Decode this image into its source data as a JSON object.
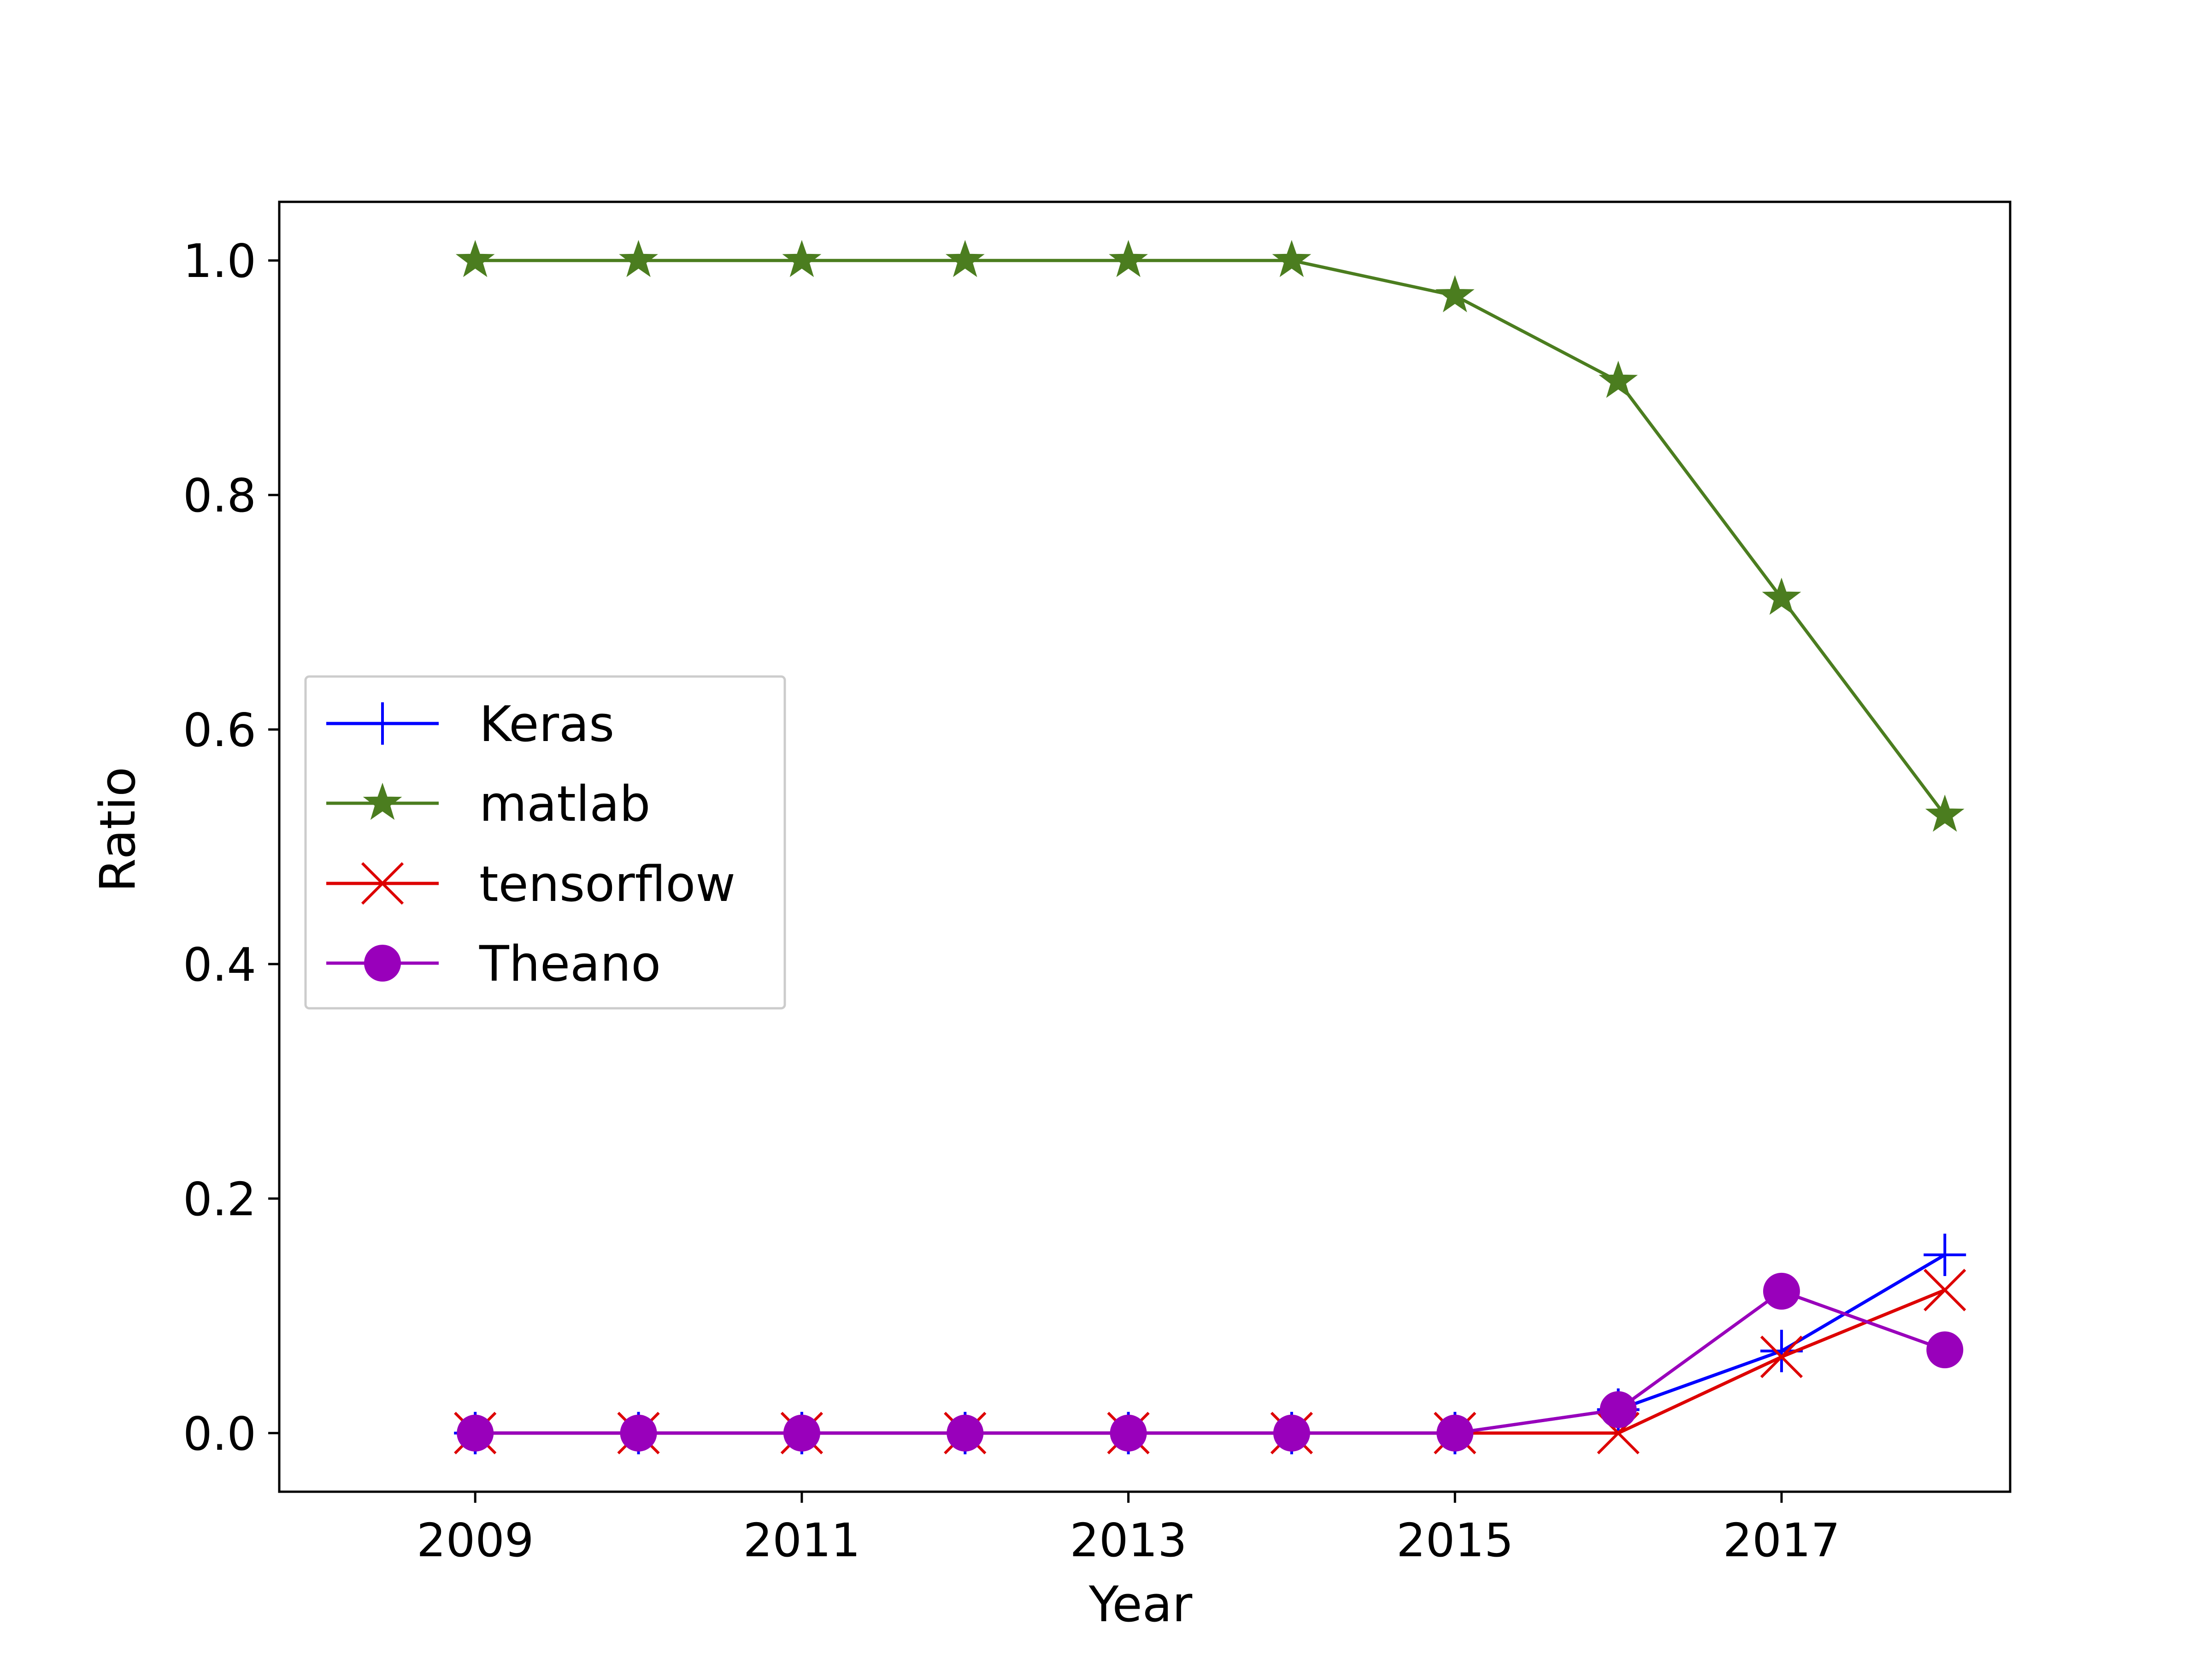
{
  "chart_data": {
    "type": "line",
    "title": "",
    "xlabel": "Year",
    "ylabel": "Ratio",
    "x": [
      2009,
      2010,
      2011,
      2012,
      2013,
      2014,
      2015,
      2016,
      2017,
      2018
    ],
    "xlim": [
      2007.8,
      2018.4
    ],
    "ylim": [
      -0.05,
      1.05
    ],
    "xticks": [
      2009,
      2011,
      2013,
      2015,
      2017
    ],
    "xtick_labels": [
      "2009",
      "2011",
      "2013",
      "2015",
      "2017"
    ],
    "yticks": [
      0.0,
      0.2,
      0.4,
      0.6,
      0.8,
      1.0
    ],
    "ytick_labels": [
      "0.0",
      "0.2",
      "0.4",
      "0.6",
      "0.8",
      "1.0"
    ],
    "grid": false,
    "legend_position": "center-left",
    "series": [
      {
        "name": "Keras",
        "color": "#0000ff",
        "marker": "plus",
        "values": [
          0,
          0,
          0,
          0,
          0,
          0,
          0,
          0.02,
          0.07,
          0.152
        ]
      },
      {
        "name": "matlab",
        "color": "#4b7d1f",
        "marker": "star",
        "values": [
          1.0,
          1.0,
          1.0,
          1.0,
          1.0,
          1.0,
          0.97,
          0.897,
          0.712,
          0.527
        ]
      },
      {
        "name": "tensorflow",
        "color": "#dd0000",
        "marker": "x",
        "values": [
          0,
          0,
          0,
          0,
          0,
          0,
          0,
          0,
          0.065,
          0.122
        ]
      },
      {
        "name": "Theano",
        "color": "#9900bb",
        "marker": "circle",
        "values": [
          0,
          0,
          0,
          0,
          0,
          0,
          0,
          0.02,
          0.121,
          0.071
        ]
      }
    ]
  }
}
